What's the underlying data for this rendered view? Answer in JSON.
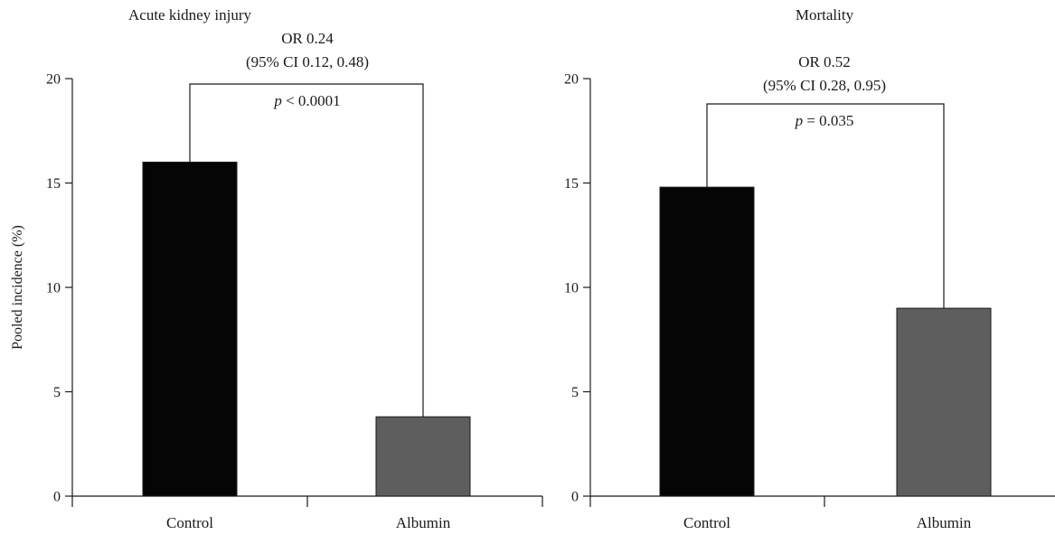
{
  "colors": {
    "control": "#050505",
    "albumin": "#5e5e5e",
    "axis": "#1a1a1a"
  },
  "shared": {
    "ylabel": "Pooled incidence (%)"
  },
  "chart_data": [
    {
      "type": "bar",
      "title": "Acute kidney injury",
      "categories": [
        "Control",
        "Albumin"
      ],
      "values": [
        16.0,
        3.8
      ],
      "ylim": [
        0,
        20
      ],
      "yticks": [
        "0",
        "5",
        "10",
        "15",
        "20"
      ],
      "ylabel": "Pooled incidence (%)",
      "grid": false,
      "annotation": {
        "line1": "OR 0.24",
        "line2": "(95% CI 0.12, 0.48)",
        "p_symbol": "p",
        "p_text": " < 0.0001"
      }
    },
    {
      "type": "bar",
      "title": "Mortality",
      "categories": [
        "Control",
        "Albumin"
      ],
      "values": [
        14.8,
        9.0
      ],
      "ylim": [
        0,
        20
      ],
      "yticks": [
        "0",
        "5",
        "10",
        "15",
        "20"
      ],
      "ylabel": "",
      "grid": false,
      "annotation": {
        "line1": "OR 0.52",
        "line2": "(95% CI 0.28, 0.95)",
        "p_symbol": "p",
        "p_text": " = 0.035"
      }
    }
  ]
}
